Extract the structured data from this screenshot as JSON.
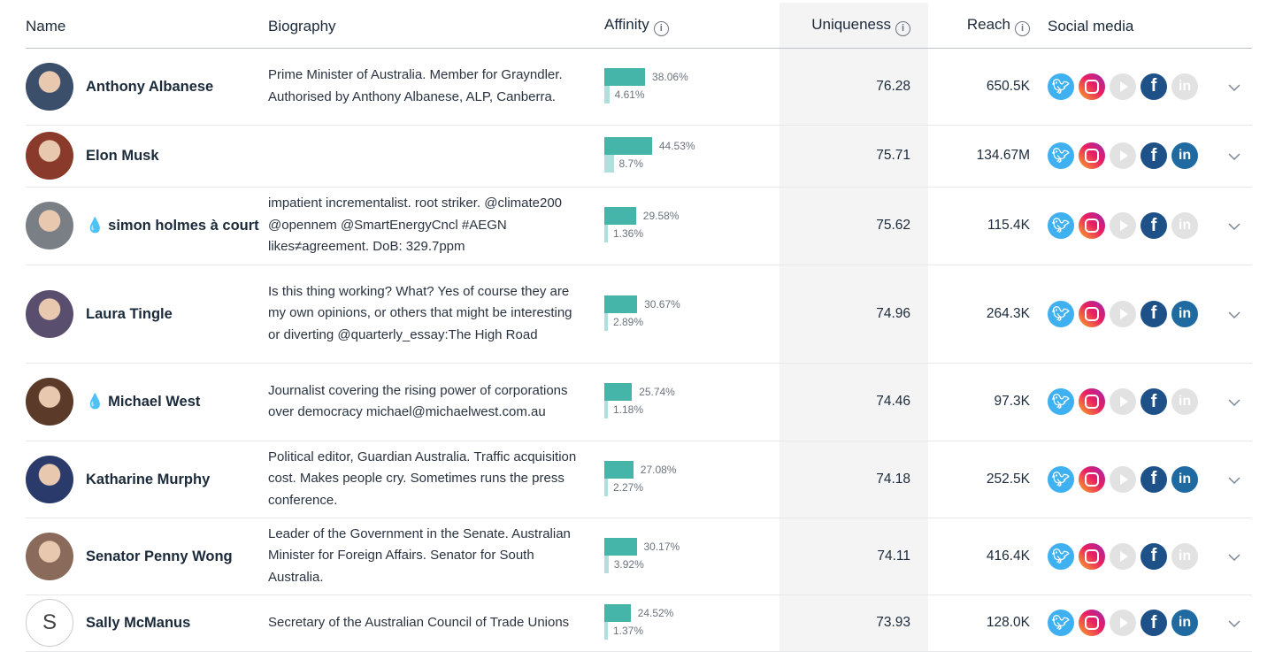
{
  "headers": {
    "name": "Name",
    "biography": "Biography",
    "affinity": "Affinity",
    "uniqueness": "Uniqueness",
    "reach": "Reach",
    "social": "Social media"
  },
  "colors": {
    "affinity_primary": "#45b5aa",
    "affinity_secondary": "#b0e0dc",
    "twitter": "#3fb0f0",
    "facebook": "#1e5187",
    "linkedin": "#1f6aa0",
    "inactive": "#e2e2e2"
  },
  "rows": [
    {
      "name": "Anthony Albanese",
      "drop": "",
      "bio": "Prime Minister of Australia. Member for Grayndler. Authorised by Anthony Albanese, ALP, Canberra.",
      "a1": "38.06%",
      "a2": "4.61%",
      "v1": 38.06,
      "v2": 4.61,
      "uniq": "76.28",
      "reach": "650.5K",
      "linkedin": false,
      "avatar": "#3b4f6a"
    },
    {
      "name": "Elon Musk",
      "drop": "",
      "bio": "",
      "a1": "44.53%",
      "a2": "8.7%",
      "v1": 44.53,
      "v2": 8.7,
      "uniq": "75.71",
      "reach": "134.67M",
      "linkedin": true,
      "avatar": "#8a3a2a"
    },
    {
      "name": "simon holmes à court",
      "drop": "💧",
      "bio": "impatient incrementalist. root striker. @climate200 @opennem @SmartEnergyCncl #AEGN likes≠agreement. DoB: 329.7ppm",
      "a1": "29.58%",
      "a2": "1.36%",
      "v1": 29.58,
      "v2": 1.36,
      "uniq": "75.62",
      "reach": "115.4K",
      "linkedin": false,
      "avatar": "#7a7f86"
    },
    {
      "name": "Laura Tingle",
      "drop": "",
      "bio": "Is this thing working? What? Yes of course they are my own opinions, or others that might be interesting or diverting @quarterly_essay:The High Road",
      "a1": "30.67%",
      "a2": "2.89%",
      "v1": 30.67,
      "v2": 2.89,
      "uniq": "74.96",
      "reach": "264.3K",
      "linkedin": true,
      "avatar": "#5a4e6e"
    },
    {
      "name": "Michael West",
      "drop": "💧",
      "bio": "Journalist covering the rising power of corporations over democracy michael@michaelwest.com.au",
      "a1": "25.74%",
      "a2": "1.18%",
      "v1": 25.74,
      "v2": 1.18,
      "uniq": "74.46",
      "reach": "97.3K",
      "linkedin": false,
      "avatar": "#5b3a2a"
    },
    {
      "name": "Katharine Murphy",
      "drop": "",
      "bio": "Political editor, Guardian Australia. Traffic acquisition cost. Makes people cry. Sometimes runs the press conference.",
      "a1": "27.08%",
      "a2": "2.27%",
      "v1": 27.08,
      "v2": 2.27,
      "uniq": "74.18",
      "reach": "252.5K",
      "linkedin": true,
      "avatar": "#2a3a6a"
    },
    {
      "name": "Senator Penny Wong",
      "drop": "",
      "bio": "Leader of the Government in the Senate. Australian Minister for Foreign Affairs. Senator for South Australia.",
      "a1": "30.17%",
      "a2": "3.92%",
      "v1": 30.17,
      "v2": 3.92,
      "uniq": "74.11",
      "reach": "416.4K",
      "linkedin": false,
      "avatar": "#8a6a5a"
    },
    {
      "name": "Sally McManus",
      "drop": "",
      "initial": "S",
      "bio": "Secretary of the Australian Council of Trade Unions",
      "a1": "24.52%",
      "a2": "1.37%",
      "v1": 24.52,
      "v2": 1.37,
      "uniq": "73.93",
      "reach": "128.0K",
      "linkedin": true,
      "avatar": "#ffffff"
    }
  ]
}
